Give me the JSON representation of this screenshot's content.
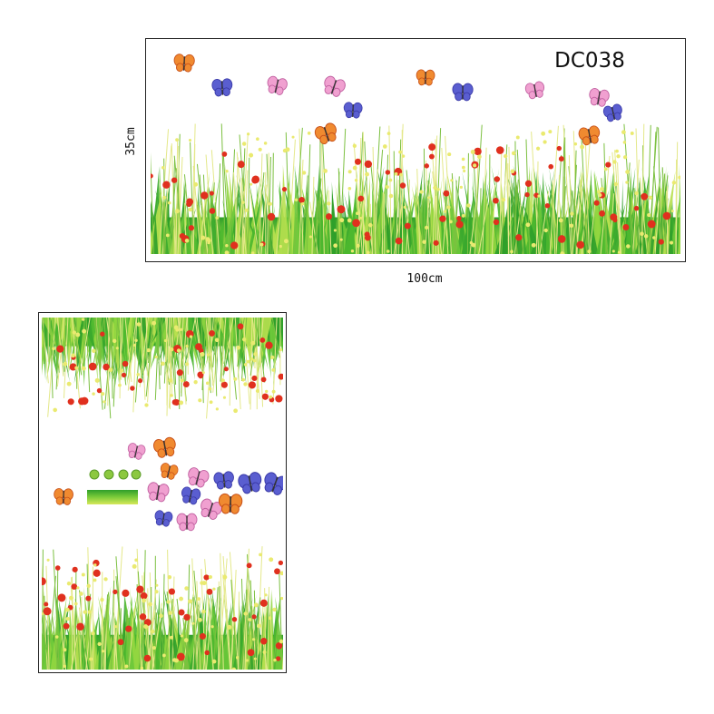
{
  "product": {
    "code": "DC038",
    "height_label": "35cm",
    "width_label": "100cm"
  }
}
